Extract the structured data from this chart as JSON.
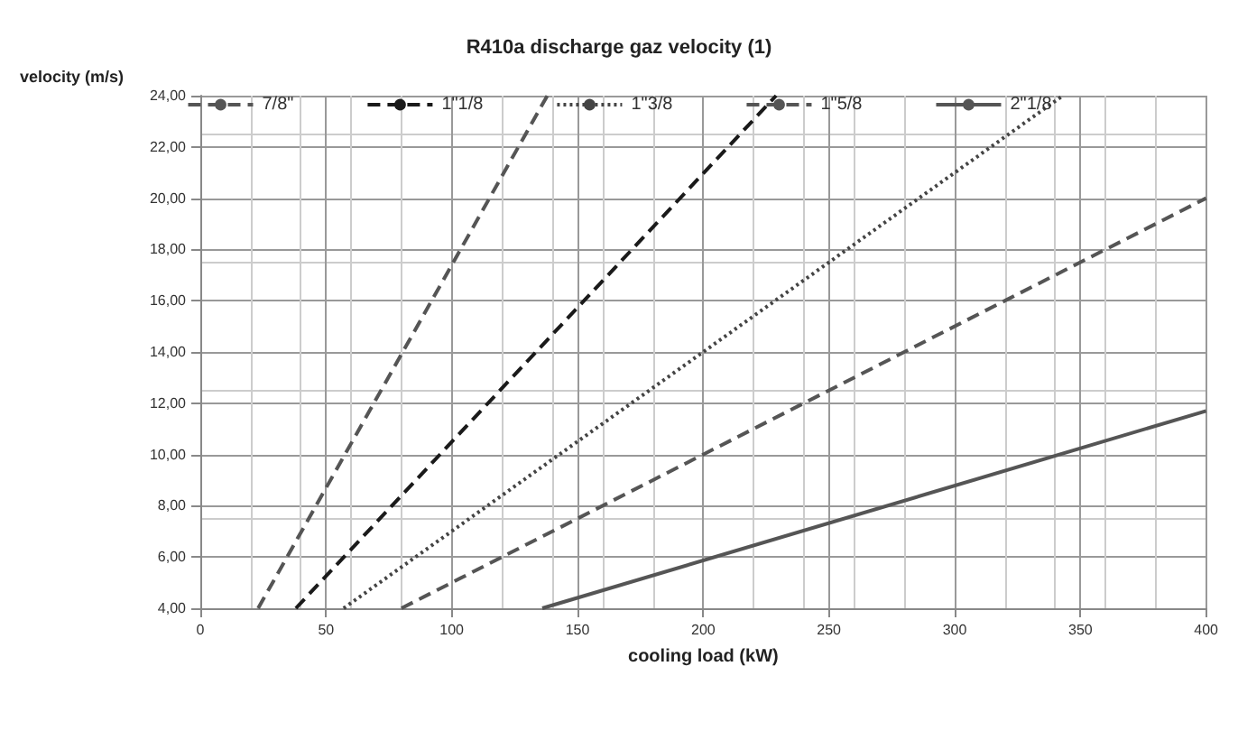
{
  "chart_data": {
    "type": "line",
    "title": "R410a discharge gaz velocity (1)",
    "xlabel": "cooling load (kW)",
    "ylabel": "velocity (m/s)",
    "series": [
      {
        "name": "7/8\"",
        "color": "#555555",
        "line_style": "dashed",
        "x": [
          23,
          138
        ],
        "values": [
          4,
          24
        ]
      },
      {
        "name": "1\"1/8",
        "color": "#1a1a1a",
        "line_style": "dashed",
        "x": [
          38,
          229
        ],
        "values": [
          4,
          24
        ]
      },
      {
        "name": "1\"3/8",
        "color": "#444444",
        "line_style": "dotted",
        "x": [
          57,
          343
        ],
        "values": [
          4,
          24
        ]
      },
      {
        "name": "1\"5/8",
        "color": "#555555",
        "line_style": "dashed",
        "x": [
          80,
          400
        ],
        "values": [
          4,
          20
        ]
      },
      {
        "name": "2\"1/8",
        "color": "#555555",
        "line_style": "solid",
        "x": [
          136,
          400
        ],
        "values": [
          4,
          11.7
        ]
      }
    ],
    "xlim": [
      0,
      400
    ],
    "xticks": [
      0,
      50,
      100,
      150,
      200,
      250,
      300,
      350,
      400
    ],
    "ylim": [
      4,
      24
    ],
    "yticks": [
      {
        "value": 4,
        "label": "4,00"
      },
      {
        "value": 6,
        "label": "6,00"
      },
      {
        "value": 8,
        "label": "8,00"
      },
      {
        "value": 10,
        "label": "10,00"
      },
      {
        "value": 12,
        "label": "12,00"
      },
      {
        "value": 14,
        "label": "14,00"
      },
      {
        "value": 16,
        "label": "16,00"
      },
      {
        "value": 18,
        "label": "18,00"
      },
      {
        "value": 20,
        "label": "20,00"
      },
      {
        "value": 22,
        "label": "22,00"
      },
      {
        "value": 24,
        "label": "24,00"
      }
    ],
    "grid": true,
    "legend": "top",
    "marker": "none"
  }
}
